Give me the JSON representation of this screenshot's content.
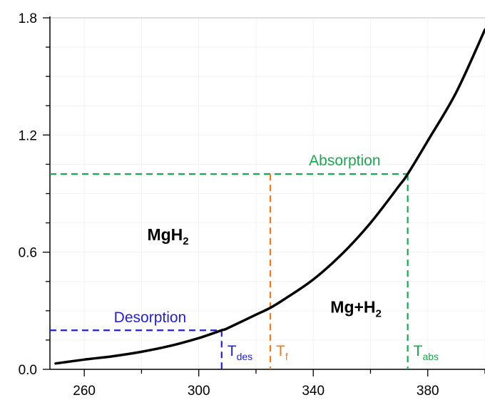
{
  "chart_data": {
    "type": "line",
    "title": "",
    "xlabel": "",
    "ylabel": "",
    "xlim": [
      248,
      400
    ],
    "ylim": [
      0,
      1.8
    ],
    "x_ticks": [
      260,
      300,
      340,
      380
    ],
    "x_ticks_minor": [
      260,
      280,
      300,
      320,
      340,
      360,
      380,
      400
    ],
    "y_ticks": [
      0.0,
      0.6,
      1.2,
      1.8
    ],
    "y_tick_labels": [
      "0.0",
      "0.6",
      "1.2",
      "1.8"
    ],
    "y_ticks_minor": [
      0.0,
      0.15,
      0.3,
      0.45,
      0.6,
      0.75,
      0.9,
      1.05,
      1.2,
      1.35,
      1.5,
      1.65,
      1.8
    ],
    "grid": true,
    "series": [
      {
        "color": "#000000",
        "x": [
          250,
          260,
          270,
          280,
          290,
          300,
          308,
          310,
          320,
          325,
          330,
          340,
          350,
          360,
          370,
          373,
          380,
          390,
          400
        ],
        "y": [
          0.03,
          0.05,
          0.067,
          0.09,
          0.12,
          0.16,
          0.2,
          0.21,
          0.28,
          0.315,
          0.36,
          0.46,
          0.59,
          0.75,
          0.94,
          1.0,
          1.17,
          1.42,
          1.74
        ]
      }
    ],
    "annotations": {
      "desorption": {
        "label": "Desorption",
        "y": 0.2,
        "x_from": 248,
        "x_to": 308,
        "color": "#1f1fdd"
      },
      "absorption": {
        "label": "Absorption",
        "y": 1.0,
        "x_from": 248,
        "x_to": 373,
        "color": "#1aa84f"
      },
      "t_des": {
        "label_main": "T",
        "label_sub": "des",
        "x": 308,
        "y_top": 0.2,
        "color": "#1f1fdd"
      },
      "t_f": {
        "label_main": "T",
        "label_sub": "f",
        "x": 325,
        "y_top": 1.0,
        "color": "#f07a1a"
      },
      "t_abs": {
        "label_main": "T",
        "label_sub": "abs",
        "x": 373,
        "y_top": 1.0,
        "color": "#1aa84f"
      }
    },
    "regions": {
      "upper": {
        "main": "MgH",
        "sub": "2",
        "x": 282,
        "y": 0.66
      },
      "lower": {
        "main": "Mg+H",
        "sub": "2",
        "x": 346,
        "y": 0.29
      }
    }
  }
}
